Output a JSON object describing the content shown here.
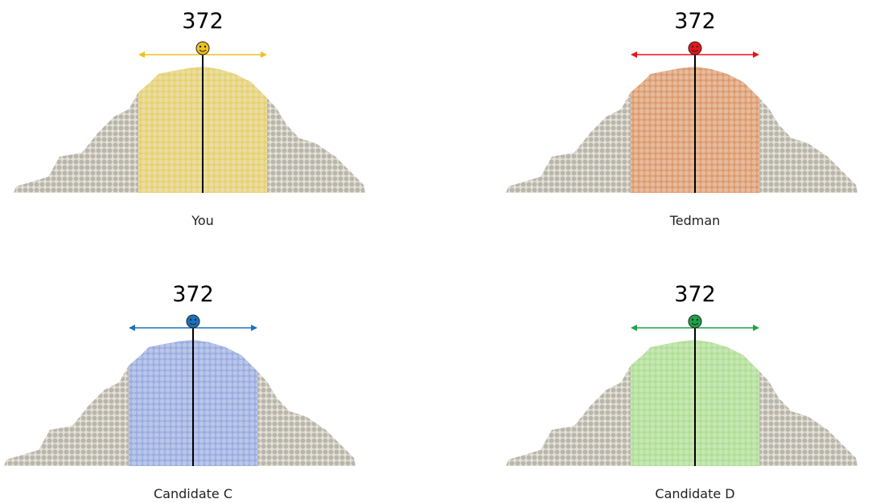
{
  "panels": [
    {
      "score": 372,
      "label": "You",
      "color": "#f0c020",
      "area_color": "#e6cf62"
    },
    {
      "score": 372,
      "label": "Tedman",
      "color": "#e8141a",
      "area_color": "#dd8f5c"
    },
    {
      "score": 372,
      "label": "Candidate C",
      "color": "#1a72c0",
      "area_color": "#8ea4e4"
    },
    {
      "score": 372,
      "label": "Candidate D",
      "color": "#1fa34a",
      "area_color": "#a6df88"
    }
  ]
}
